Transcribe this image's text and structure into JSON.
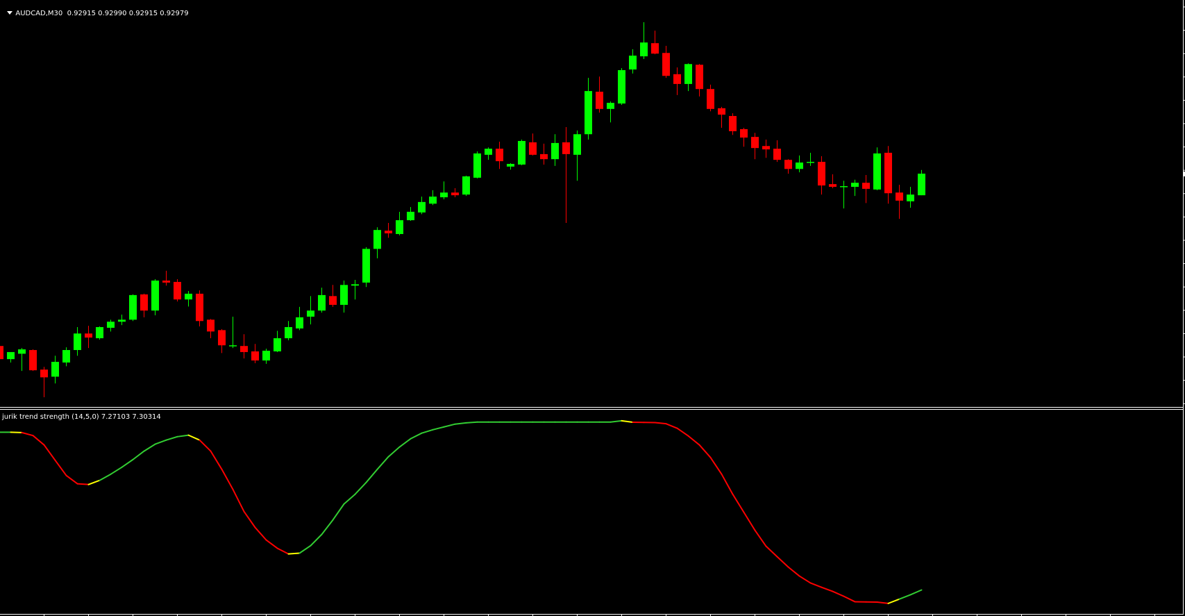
{
  "header": {
    "symbol": "AUDCAD,M30",
    "ohlc_readout": "0.92915 0.92990 0.92915 0.92979",
    "menu_icon": "triangle-down-icon"
  },
  "indicator": {
    "label": "jurik trend strength (14,5,0) 7.27103 7.30314"
  },
  "colors": {
    "background": "#000000",
    "bull": "#00FF00",
    "bear": "#FF0000",
    "line_up": "#32CD32",
    "line_down": "#FF0000",
    "line_turn": "#FFFF00",
    "axis": "#FFFFFF"
  },
  "chart_data": [
    {
      "type": "candlestick",
      "title": "AUDCAD,M30",
      "ylim": [
        0.92281,
        0.93494
      ],
      "grid": false,
      "fields": [
        "open",
        "high",
        "low",
        "close"
      ],
      "ohlc": [
        [
          0.92468,
          0.92472,
          0.92425,
          0.92429
        ],
        [
          0.92429,
          0.9245,
          0.92419,
          0.9245
        ],
        [
          0.92445,
          0.92462,
          0.92394,
          0.92458
        ],
        [
          0.92456,
          0.92458,
          0.92394,
          0.92396
        ],
        [
          0.92398,
          0.92406,
          0.92316,
          0.92375
        ],
        [
          0.92377,
          0.92439,
          0.92357,
          0.92421
        ],
        [
          0.92419,
          0.92464,
          0.92408,
          0.92456
        ],
        [
          0.92456,
          0.92524,
          0.92439,
          0.92505
        ],
        [
          0.92505,
          0.92528,
          0.92462,
          0.92493
        ],
        [
          0.92491,
          0.92526,
          0.92487,
          0.92524
        ],
        [
          0.92522,
          0.92546,
          0.92511,
          0.9254
        ],
        [
          0.9254,
          0.92561,
          0.9253,
          0.92546
        ],
        [
          0.92546,
          0.92621,
          0.92542,
          0.92619
        ],
        [
          0.92621,
          0.92623,
          0.92553,
          0.92573
        ],
        [
          0.92573,
          0.92666,
          0.92559,
          0.92662
        ],
        [
          0.92662,
          0.92691,
          0.92647,
          0.92656
        ],
        [
          0.92658,
          0.92666,
          0.926,
          0.92606
        ],
        [
          0.92606,
          0.92631,
          0.92585,
          0.92623
        ],
        [
          0.92623,
          0.92633,
          0.92526,
          0.92542
        ],
        [
          0.92546,
          0.92548,
          0.92491,
          0.92511
        ],
        [
          0.92515,
          0.92518,
          0.92447,
          0.9247
        ],
        [
          0.92469,
          0.92555,
          0.92462,
          0.9247
        ],
        [
          0.92468,
          0.92503,
          0.92431,
          0.9245
        ],
        [
          0.92452,
          0.92474,
          0.92417,
          0.92425
        ],
        [
          0.92425,
          0.9246,
          0.92415,
          0.92454
        ],
        [
          0.92452,
          0.92513,
          0.9245,
          0.92491
        ],
        [
          0.92491,
          0.92542,
          0.92485,
          0.92524
        ],
        [
          0.9252,
          0.92584,
          0.92515,
          0.92553
        ],
        [
          0.92555,
          0.92616,
          0.92532,
          0.92573
        ],
        [
          0.92573,
          0.92641,
          0.92567,
          0.92619
        ],
        [
          0.92616,
          0.92649,
          0.92584,
          0.9259
        ],
        [
          0.9259,
          0.92662,
          0.92567,
          0.92649
        ],
        [
          0.92647,
          0.92664,
          0.92606,
          0.92651
        ],
        [
          0.92656,
          0.92761,
          0.92643,
          0.92756
        ],
        [
          0.92756,
          0.9282,
          0.92728,
          0.92812
        ],
        [
          0.9281,
          0.92833,
          0.92789,
          0.92802
        ],
        [
          0.928,
          0.92866,
          0.92796,
          0.92841
        ],
        [
          0.92841,
          0.9288,
          0.92839,
          0.92866
        ],
        [
          0.92864,
          0.92911,
          0.92859,
          0.92895
        ],
        [
          0.9289,
          0.9293,
          0.92886,
          0.92911
        ],
        [
          0.92909,
          0.92956,
          0.92903,
          0.92923
        ],
        [
          0.92923,
          0.92936,
          0.92909,
          0.92915
        ],
        [
          0.92917,
          0.92973,
          0.92913,
          0.92971
        ],
        [
          0.92967,
          0.93045,
          0.92965,
          0.93039
        ],
        [
          0.93035,
          0.93057,
          0.9302,
          0.93053
        ],
        [
          0.93053,
          0.93074,
          0.92993,
          0.93016
        ],
        [
          0.93,
          0.9301,
          0.92991,
          0.93008
        ],
        [
          0.93006,
          0.9308,
          0.93004,
          0.93076
        ],
        [
          0.93072,
          0.93098,
          0.93033,
          0.93035
        ],
        [
          0.93037,
          0.93068,
          0.93006,
          0.93022
        ],
        [
          0.93022,
          0.93096,
          0.93002,
          0.9307
        ],
        [
          0.93072,
          0.93117,
          0.92833,
          0.93037
        ],
        [
          0.93035,
          0.93107,
          0.92958,
          0.93096
        ],
        [
          0.93096,
          0.93263,
          0.9308,
          0.93224
        ],
        [
          0.93222,
          0.93267,
          0.9316,
          0.93171
        ],
        [
          0.93171,
          0.93193,
          0.93131,
          0.93189
        ],
        [
          0.93187,
          0.93292,
          0.93183,
          0.93286
        ],
        [
          0.93288,
          0.93348,
          0.93276,
          0.93329
        ],
        [
          0.93327,
          0.93428,
          0.93319,
          0.93368
        ],
        [
          0.93366,
          0.93403,
          0.93333,
          0.93335
        ],
        [
          0.93337,
          0.93358,
          0.93263,
          0.93269
        ],
        [
          0.93274,
          0.93294,
          0.93212,
          0.93245
        ],
        [
          0.93245,
          0.93306,
          0.93224,
          0.93304
        ],
        [
          0.93302,
          0.93304,
          0.93208,
          0.9323
        ],
        [
          0.9323,
          0.93243,
          0.93164,
          0.93171
        ],
        [
          0.93173,
          0.93177,
          0.93115,
          0.93154
        ],
        [
          0.9315,
          0.93158,
          0.93094,
          0.93105
        ],
        [
          0.93111,
          0.93115,
          0.93059,
          0.93086
        ],
        [
          0.93088,
          0.931,
          0.93022,
          0.93055
        ],
        [
          0.93061,
          0.9308,
          0.93026,
          0.93051
        ],
        [
          0.93053,
          0.93078,
          0.93014,
          0.9302
        ],
        [
          0.9302,
          0.93022,
          0.92979,
          0.92993
        ],
        [
          0.92993,
          0.93033,
          0.92983,
          0.93012
        ],
        [
          0.93013,
          0.93041,
          0.93002,
          0.93014
        ],
        [
          0.93014,
          0.93031,
          0.92917,
          0.92944
        ],
        [
          0.92948,
          0.92977,
          0.92936,
          0.9294
        ],
        [
          0.92941,
          0.92958,
          0.92876,
          0.92942
        ],
        [
          0.9294,
          0.92961,
          0.92913,
          0.92952
        ],
        [
          0.92952,
          0.92975,
          0.92892,
          0.92934
        ],
        [
          0.92932,
          0.93057,
          0.9293,
          0.93039
        ],
        [
          0.93041,
          0.93061,
          0.9289,
          0.92921
        ],
        [
          0.92923,
          0.92946,
          0.92845,
          0.92899
        ],
        [
          0.92897,
          0.9294,
          0.92878,
          0.92917
        ],
        [
          0.92915,
          0.9299,
          0.92915,
          0.92979
        ]
      ]
    },
    {
      "type": "line",
      "title": "jurik trend strength (14,5,0)",
      "ylim": [
        -5.5,
        103
      ],
      "grid": false,
      "values": [
        91.4,
        91.4,
        91.2,
        89.6,
        84.6,
        76.4,
        68.3,
        63.9,
        63.5,
        65.7,
        69.0,
        72.7,
        76.8,
        81.3,
        85.0,
        87.2,
        89.0,
        89.8,
        87.2,
        81.3,
        71.6,
        60.9,
        49.1,
        40.6,
        33.9,
        29.5,
        26.5,
        26.9,
        30.9,
        36.9,
        44.6,
        53.1,
        58.3,
        64.6,
        71.6,
        78.3,
        83.5,
        87.9,
        90.9,
        92.7,
        94.2,
        95.7,
        96.4,
        96.8,
        96.8,
        96.8,
        96.8,
        96.8,
        96.8,
        96.8,
        96.8,
        96.8,
        96.8,
        96.8,
        96.8,
        96.8,
        97.5,
        96.7,
        96.6,
        96.5,
        95.9,
        93.5,
        89.4,
        84.6,
        77.9,
        69.0,
        58.3,
        48.7,
        39.1,
        30.6,
        25.0,
        19.5,
        14.7,
        11.0,
        8.7,
        6.5,
        3.9,
        1.0,
        0.9,
        0.8,
        0.1,
        2.4,
        4.7,
        7.27103
      ]
    }
  ]
}
